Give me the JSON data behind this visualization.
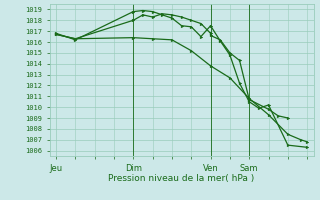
{
  "bg_color": "#cce8e8",
  "grid_color": "#99ccbb",
  "line_color": "#1a6b1a",
  "marker_color": "#1a6b1a",
  "ylabel_ticks": [
    1006,
    1007,
    1008,
    1009,
    1010,
    1011,
    1012,
    1013,
    1014,
    1015,
    1016,
    1017,
    1018,
    1019
  ],
  "ylim": [
    1005.5,
    1019.5
  ],
  "xlabel": "Pression niveau de la mer( hPa )",
  "xlabel_color": "#1a6b1a",
  "tick_label_color": "#1a6b1a",
  "day_labels": [
    "Jeu",
    "Dim",
    "Ven",
    "Sam"
  ],
  "day_positions": [
    0,
    24,
    48,
    60
  ],
  "line1_x": [
    0,
    6,
    24,
    27,
    30,
    33,
    36,
    39,
    42,
    45,
    48,
    48,
    51,
    54,
    57,
    60,
    66,
    69,
    72
  ],
  "line1_y": [
    1016.7,
    1016.3,
    1018.0,
    1018.5,
    1018.3,
    1018.6,
    1018.5,
    1018.3,
    1018.0,
    1017.7,
    1016.8,
    1016.6,
    1016.2,
    1015.0,
    1014.3,
    1010.7,
    1009.8,
    1009.2,
    1009.0
  ],
  "line2_x": [
    0,
    6,
    24,
    27,
    30,
    33,
    36,
    39,
    42,
    45,
    48,
    51,
    54,
    57,
    60,
    63,
    66,
    72,
    78
  ],
  "line2_y": [
    1016.8,
    1016.2,
    1018.8,
    1018.9,
    1018.8,
    1018.5,
    1018.2,
    1017.5,
    1017.4,
    1016.5,
    1017.5,
    1016.1,
    1014.8,
    1012.2,
    1010.5,
    1009.9,
    1010.2,
    1006.5,
    1006.3
  ],
  "line3_x": [
    0,
    6,
    24,
    30,
    36,
    42,
    48,
    54,
    60,
    66,
    72,
    76,
    78
  ],
  "line3_y": [
    1016.7,
    1016.3,
    1016.4,
    1016.3,
    1016.2,
    1015.2,
    1013.8,
    1012.7,
    1010.8,
    1009.3,
    1007.5,
    1007.0,
    1006.8
  ],
  "vline_positions": [
    24,
    48,
    60
  ],
  "xlim": [
    -2,
    80
  ],
  "total_x": 78,
  "lw": 0.9,
  "ms": 2.0
}
